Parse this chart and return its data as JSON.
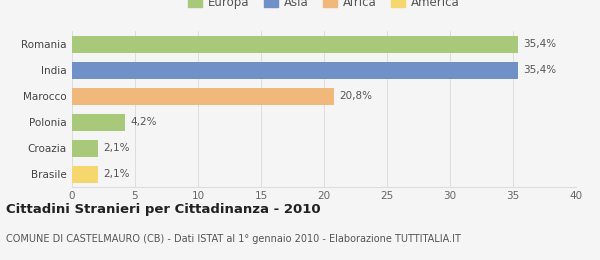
{
  "categories": [
    "Brasile",
    "Croazia",
    "Polonia",
    "Marocco",
    "India",
    "Romania"
  ],
  "values": [
    2.1,
    2.1,
    4.2,
    20.8,
    35.4,
    35.4
  ],
  "labels": [
    "2,1%",
    "2,1%",
    "4,2%",
    "20,8%",
    "35,4%",
    "35,4%"
  ],
  "bar_colors": [
    "#f5d76e",
    "#a8c87a",
    "#a8c87a",
    "#f0b87a",
    "#7090c8",
    "#a8c87a"
  ],
  "legend_items": [
    {
      "label": "Europa",
      "color": "#a8c87a"
    },
    {
      "label": "Asia",
      "color": "#7090c8"
    },
    {
      "label": "Africa",
      "color": "#f0b87a"
    },
    {
      "label": "America",
      "color": "#f5d76e"
    }
  ],
  "xlim": [
    0,
    40
  ],
  "xticks": [
    0,
    5,
    10,
    15,
    20,
    25,
    30,
    35,
    40
  ],
  "title": "Cittadini Stranieri per Cittadinanza - 2010",
  "subtitle": "COMUNE DI CASTELMAURO (CB) - Dati ISTAT al 1° gennaio 2010 - Elaborazione TUTTITALIA.IT",
  "background_color": "#f5f5f5",
  "grid_color": "#dddddd",
  "title_fontsize": 9.5,
  "subtitle_fontsize": 7.0,
  "label_fontsize": 7.5,
  "tick_fontsize": 7.5,
  "legend_fontsize": 8.5
}
